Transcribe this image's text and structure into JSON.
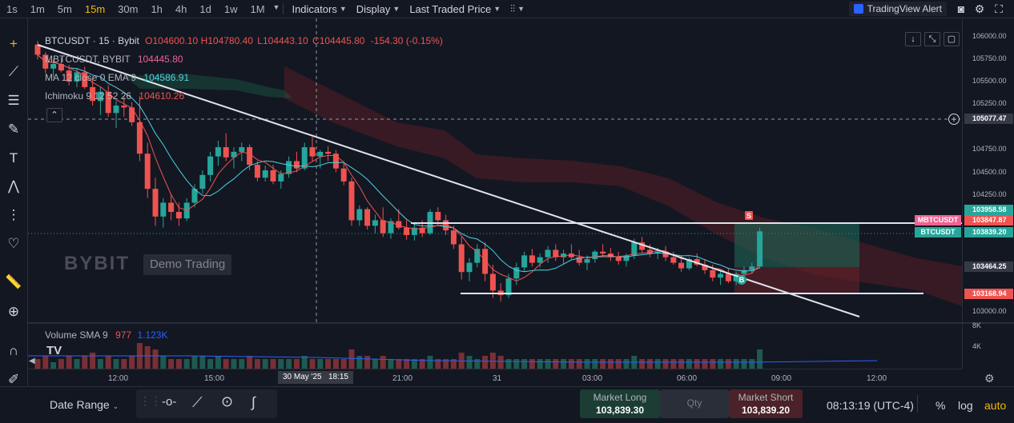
{
  "toolbar": {
    "timeframes": [
      "1s",
      "1m",
      "5m",
      "15m",
      "30m",
      "1h",
      "4h",
      "1d",
      "1w",
      "1M"
    ],
    "active_timeframe": "15m",
    "indicators_label": "Indicators",
    "display_label": "Display",
    "price_type_label": "Last Traded Price",
    "alert_label": "TradingView Alert"
  },
  "legend": {
    "symbol": "BTCUSDT · 15 · Bybit",
    "ohlc": {
      "o": "O104600.10",
      "h": "H104780.40",
      "l": "L104443.10",
      "c": "C104445.80",
      "chg": "-154.30 (-0.15%)"
    },
    "compare_name": "MBTCUSDT, BYBIT",
    "compare_value": "104445.80",
    "ma_name": "MA 12 close 0 EMA 9",
    "ma_value": "104586.91",
    "ichimoku_name": "Ichimoku 9 12 52 26",
    "ichimoku_value": "104610.26",
    "volume_name": "Volume SMA 9",
    "volume_value1": "977",
    "volume_value2": "1.123K"
  },
  "watermark": {
    "brand": "BYBIT",
    "demo": "Demo Trading"
  },
  "price_axis": {
    "labels": [
      "106000.00",
      "105750.00",
      "105500.00",
      "105250.00",
      "104750.00",
      "104500.00",
      "104250.00",
      "103000.00"
    ],
    "crosshair_price": "105077.47",
    "tags": [
      {
        "text": "103958.58",
        "color": "#26a69a"
      },
      {
        "text": "103847.87",
        "color": "#ef5350"
      },
      {
        "text": "103839.20",
        "color": "#26a69a"
      },
      {
        "text": "103464.25",
        "color": "#363a45"
      },
      {
        "text": "103168.94",
        "color": "#ef5350"
      }
    ],
    "series_labels": [
      "MBTCUSDT",
      "BTCUSDT"
    ],
    "vol_labels": [
      "8K",
      "4K"
    ]
  },
  "time_axis": {
    "labels": [
      "12:00",
      "15:00",
      "21:00",
      "31",
      "03:00",
      "06:00",
      "09:00",
      "12:00"
    ],
    "crosshair_time": "30 May '25   18:15"
  },
  "trade_markers": {
    "sell": "S",
    "buy": "B"
  },
  "bottom": {
    "date_range_label": "Date Range",
    "market_long_label": "Market Long",
    "market_long_price": "103,839.30",
    "qty_label": "Qty",
    "market_short_label": "Market Short",
    "market_short_price": "103,839.20",
    "clock": "08:13:19 (UTC-4)",
    "percent_label": "%",
    "log_label": "log",
    "auto_label": "auto"
  },
  "colors": {
    "up": "#26a69a",
    "down": "#ef5350",
    "background": "#131722",
    "accent": "#f0b90b"
  },
  "chart_data": {
    "type": "candlestick",
    "ylim": [
      102900,
      106100
    ],
    "candles": [
      [
        105860,
        105900,
        105700,
        105750
      ],
      [
        105750,
        105780,
        105550,
        105600
      ],
      [
        105600,
        105700,
        105500,
        105650
      ],
      [
        105650,
        105720,
        105560,
        105580
      ],
      [
        105580,
        105640,
        105420,
        105460
      ],
      [
        105460,
        105600,
        105400,
        105560
      ],
      [
        105560,
        105620,
        105380,
        105400
      ],
      [
        105400,
        105500,
        105200,
        105250
      ],
      [
        105250,
        105400,
        105100,
        105350
      ],
      [
        105350,
        105420,
        105080,
        105120
      ],
      [
        105120,
        105250,
        104960,
        105200
      ],
      [
        105200,
        105300,
        105080,
        105180
      ],
      [
        105180,
        105240,
        104980,
        105020
      ],
      [
        105020,
        105300,
        104600,
        104680
      ],
      [
        104680,
        104800,
        104200,
        104300
      ],
      [
        104300,
        104420,
        103900,
        104000
      ],
      [
        104000,
        104200,
        103880,
        104150
      ],
      [
        104150,
        104250,
        103960,
        104050
      ],
      [
        104050,
        104150,
        103900,
        103980
      ],
      [
        103980,
        104200,
        103950,
        104150
      ],
      [
        104150,
        104350,
        104100,
        104300
      ],
      [
        104300,
        104500,
        104250,
        104450
      ],
      [
        104450,
        104700,
        104380,
        104650
      ],
      [
        104650,
        104820,
        104550,
        104750
      ],
      [
        104750,
        104900,
        104600,
        104640
      ],
      [
        104640,
        104750,
        104520,
        104700
      ],
      [
        104700,
        104800,
        104600,
        104750
      ],
      [
        104750,
        104780,
        104500,
        104560
      ],
      [
        104560,
        104600,
        104380,
        104420
      ],
      [
        104420,
        104550,
        104380,
        104500
      ],
      [
        104500,
        104560,
        104350,
        104380
      ],
      [
        104380,
        104500,
        104300,
        104460
      ],
      [
        104460,
        104650,
        104420,
        104600
      ],
      [
        104600,
        104700,
        104480,
        104520
      ],
      [
        104520,
        104800,
        104500,
        104750
      ],
      [
        104750,
        104860,
        104600,
        104650
      ],
      [
        104650,
        104720,
        104520,
        104700
      ],
      [
        104700,
        104760,
        104600,
        104680
      ],
      [
        104680,
        104720,
        104480,
        104520
      ],
      [
        104520,
        104600,
        104340,
        104380
      ],
      [
        104380,
        104420,
        103900,
        103960
      ],
      [
        103960,
        104120,
        103900,
        104080
      ],
      [
        104080,
        104100,
        103860,
        103900
      ],
      [
        103900,
        104020,
        103820,
        103960
      ],
      [
        103960,
        104100,
        103780,
        103820
      ],
      [
        103820,
        103980,
        103760,
        103950
      ],
      [
        103950,
        104080,
        103860,
        103880
      ],
      [
        103880,
        103960,
        103750,
        103800
      ],
      [
        103800,
        103920,
        103740,
        103880
      ],
      [
        103880,
        103960,
        103780,
        103820
      ],
      [
        103820,
        104080,
        103800,
        104050
      ],
      [
        104050,
        104100,
        103900,
        103960
      ],
      [
        103960,
        104020,
        103800,
        103850
      ],
      [
        103850,
        103900,
        103650,
        103700
      ],
      [
        103700,
        103780,
        103320,
        103400
      ],
      [
        103400,
        103550,
        103300,
        103500
      ],
      [
        103500,
        103700,
        103450,
        103650
      ],
      [
        103650,
        103720,
        103300,
        103380
      ],
      [
        103380,
        103480,
        103120,
        103200
      ],
      [
        103200,
        103280,
        103080,
        103150
      ],
      [
        103150,
        103380,
        103120,
        103330
      ],
      [
        103330,
        103500,
        103260,
        103450
      ],
      [
        103450,
        103620,
        103400,
        103580
      ],
      [
        103580,
        103650,
        103460,
        103500
      ],
      [
        103500,
        103600,
        103450,
        103560
      ],
      [
        103560,
        103680,
        103500,
        103640
      ],
      [
        103640,
        103700,
        103520,
        103560
      ],
      [
        103560,
        103640,
        103480,
        103600
      ],
      [
        103600,
        103700,
        103540,
        103560
      ],
      [
        103560,
        103640,
        103470,
        103500
      ],
      [
        103500,
        103580,
        103420,
        103540
      ],
      [
        103540,
        103640,
        103500,
        103620
      ],
      [
        103620,
        103700,
        103560,
        103600
      ],
      [
        103600,
        103660,
        103520,
        103560
      ],
      [
        103560,
        103620,
        103480,
        103520
      ],
      [
        103520,
        103600,
        103460,
        103580
      ],
      [
        103580,
        103760,
        103540,
        103720
      ],
      [
        103720,
        103780,
        103600,
        103640
      ],
      [
        103640,
        103700,
        103560,
        103600
      ],
      [
        103600,
        103660,
        103540,
        103620
      ],
      [
        103620,
        103680,
        103520,
        103560
      ],
      [
        103560,
        103620,
        103480,
        103500
      ],
      [
        103500,
        103580,
        103400,
        103440
      ],
      [
        103440,
        103560,
        103420,
        103540
      ],
      [
        103540,
        103600,
        103460,
        103480
      ],
      [
        103480,
        103540,
        103380,
        103420
      ],
      [
        103420,
        103480,
        103300,
        103340
      ],
      [
        103340,
        103420,
        103260,
        103380
      ],
      [
        103380,
        103440,
        103280,
        103300
      ],
      [
        103300,
        103400,
        103260,
        103380
      ],
      [
        103380,
        103460,
        103320,
        103420
      ],
      [
        103420,
        103500,
        103380,
        103460
      ],
      [
        103460,
        103880,
        103440,
        103840
      ]
    ],
    "volumes": [
      3,
      4,
      2,
      3,
      4,
      3,
      4,
      5,
      3,
      4,
      3,
      3,
      4,
      8,
      7,
      6,
      4,
      3,
      3,
      3,
      4,
      4,
      3,
      4,
      3,
      3,
      3,
      4,
      3,
      3,
      3,
      3,
      3,
      3,
      4,
      3,
      3,
      3,
      3,
      3,
      6,
      4,
      4,
      3,
      4,
      3,
      3,
      3,
      3,
      3,
      4,
      3,
      3,
      3,
      5,
      4,
      3,
      4,
      5,
      4,
      3,
      3,
      3,
      3,
      3,
      3,
      3,
      3,
      3,
      3,
      3,
      3,
      3,
      3,
      3,
      3,
      4,
      3,
      3,
      3,
      3,
      3,
      3,
      3,
      3,
      3,
      3,
      3,
      3,
      3,
      3,
      3,
      6
    ]
  }
}
